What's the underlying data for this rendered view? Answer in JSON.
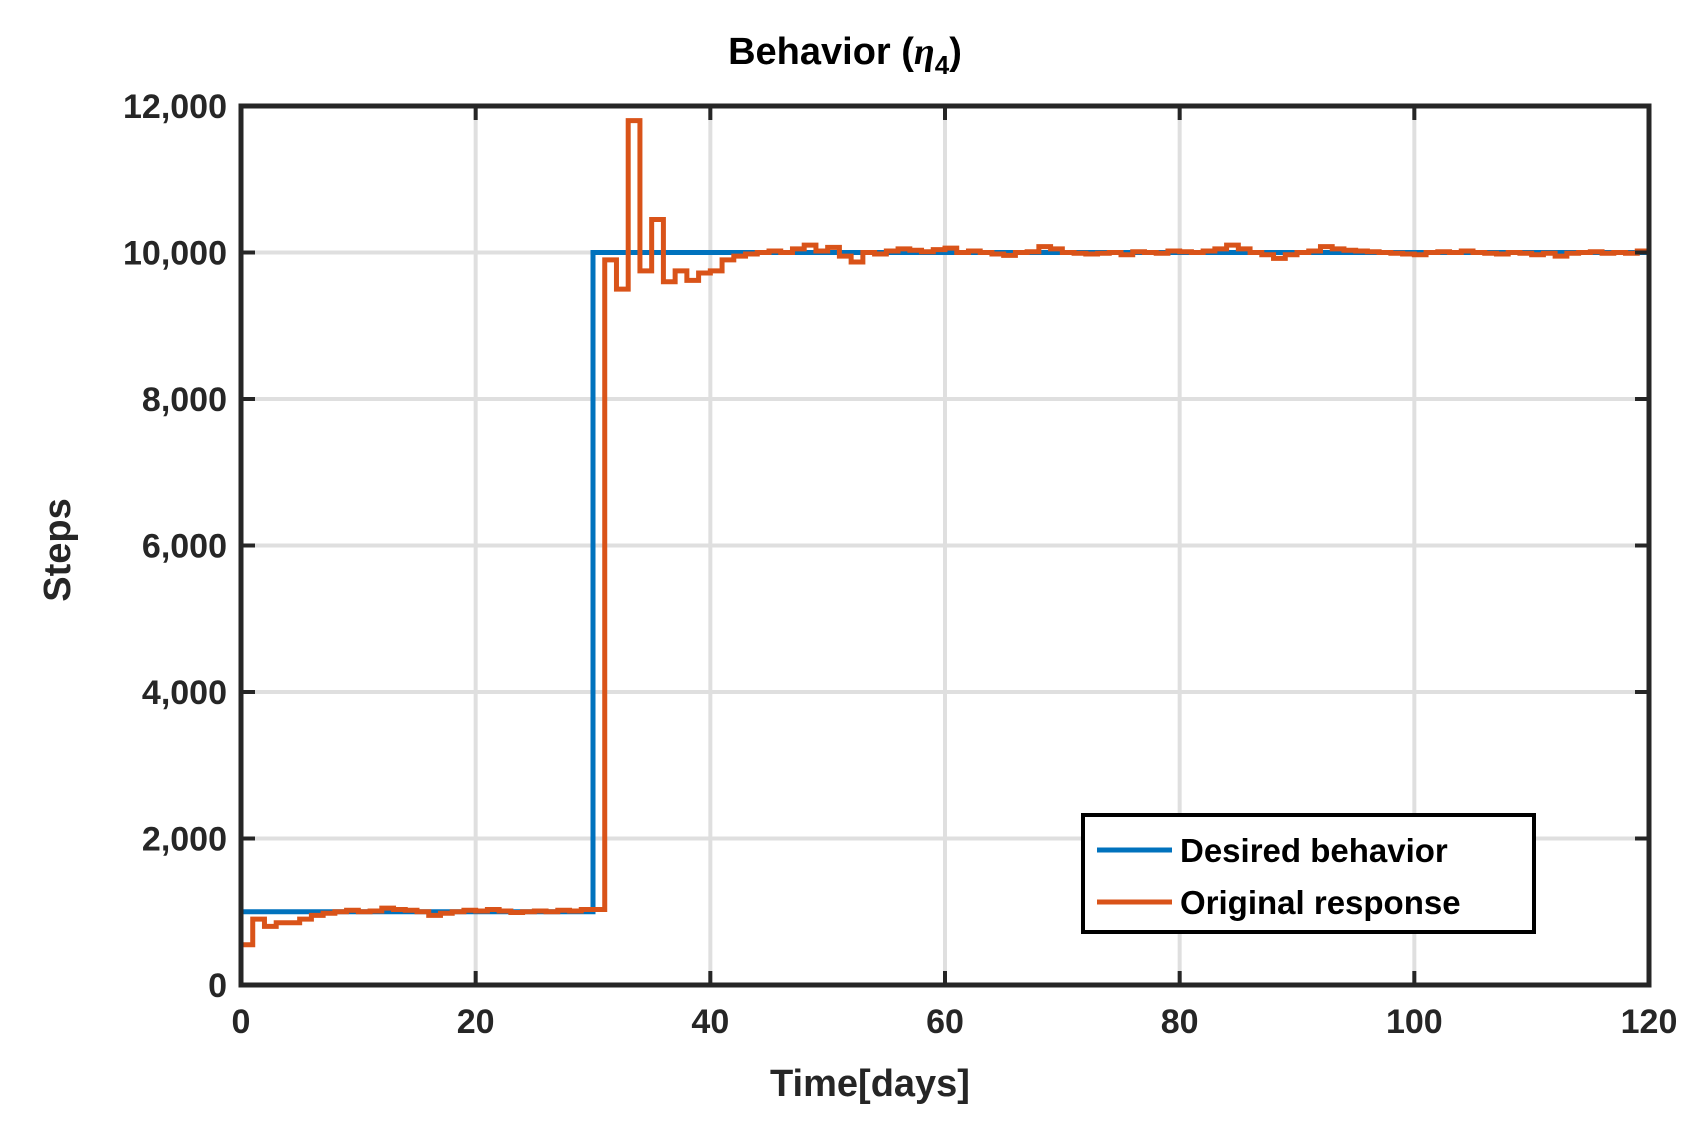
{
  "chart_data": {
    "type": "line",
    "title": "Behavior (",
    "title_symbol": "η",
    "title_subscript": "4",
    "title_close": ")",
    "xlabel": "Time[days]",
    "ylabel": "Steps",
    "xlim": [
      0,
      120
    ],
    "ylim": [
      0,
      12000
    ],
    "xticks": [
      0,
      20,
      40,
      60,
      80,
      100,
      120
    ],
    "yticks": [
      0,
      2000,
      4000,
      6000,
      8000,
      10000,
      12000
    ],
    "xtick_labels": [
      "0",
      "20",
      "40",
      "60",
      "80",
      "100",
      "120"
    ],
    "ytick_labels": [
      "0",
      "2,000",
      "4,000",
      "6,000",
      "8,000",
      "10,000",
      "12,000"
    ],
    "grid": true,
    "legend_position": "bottom-right",
    "series": [
      {
        "name": "Desired behavior",
        "color": "#0072BD",
        "style": "step",
        "x": [
          0,
          30,
          120
        ],
        "y": [
          1000,
          10000,
          10000
        ]
      },
      {
        "name": "Original response",
        "color": "#D95319",
        "style": "step",
        "x": [
          0,
          1,
          2,
          3,
          4,
          5,
          6,
          7,
          8,
          9,
          10,
          11,
          12,
          13,
          14,
          15,
          16,
          17,
          18,
          19,
          20,
          21,
          22,
          23,
          24,
          25,
          26,
          27,
          28,
          29,
          30,
          31,
          32,
          33,
          34,
          35,
          36,
          37,
          38,
          39,
          40,
          41,
          42,
          43,
          44,
          45,
          46,
          47,
          48,
          49,
          50,
          51,
          52,
          53,
          54,
          55,
          56,
          57,
          58,
          59,
          60,
          61,
          62,
          63,
          64,
          65,
          66,
          67,
          68,
          69,
          70,
          71,
          72,
          73,
          74,
          75,
          76,
          77,
          78,
          79,
          80,
          81,
          82,
          83,
          84,
          85,
          86,
          87,
          88,
          89,
          90,
          91,
          92,
          93,
          94,
          95,
          96,
          97,
          98,
          99,
          100,
          101,
          102,
          103,
          104,
          105,
          106,
          107,
          108,
          109,
          110,
          111,
          112,
          113,
          114,
          115,
          116,
          117,
          118,
          119,
          120
        ],
        "y": [
          550,
          900,
          800,
          850,
          850,
          900,
          950,
          980,
          1000,
          1020,
          1000,
          1010,
          1050,
          1030,
          1020,
          1000,
          950,
          980,
          1000,
          1020,
          1010,
          1030,
          1010,
          990,
          1000,
          1010,
          1000,
          1020,
          1010,
          1030,
          1030,
          9900,
          9500,
          11800,
          9750,
          10450,
          9600,
          9750,
          9620,
          9720,
          9750,
          9900,
          9950,
          9980,
          10000,
          10020,
          10000,
          10050,
          10100,
          10020,
          10070,
          9950,
          9870,
          10000,
          9980,
          10020,
          10050,
          10030,
          10010,
          10040,
          10060,
          10000,
          10020,
          10000,
          9980,
          9960,
          10000,
          10010,
          10080,
          10050,
          10000,
          9990,
          9980,
          9990,
          10000,
          9970,
          10010,
          10000,
          9990,
          10020,
          10010,
          10000,
          10020,
          10050,
          10100,
          10050,
          10000,
          9970,
          9920,
          9970,
          10000,
          10020,
          10080,
          10050,
          10030,
          10020,
          10010,
          10000,
          9990,
          9980,
          9970,
          10000,
          10010,
          10000,
          10020,
          10000,
          9990,
          9980,
          10000,
          9990,
          9970,
          9990,
          9950,
          9990,
          10000,
          10010,
          9990,
          10000,
          9990,
          10020,
          10050
        ]
      }
    ]
  }
}
